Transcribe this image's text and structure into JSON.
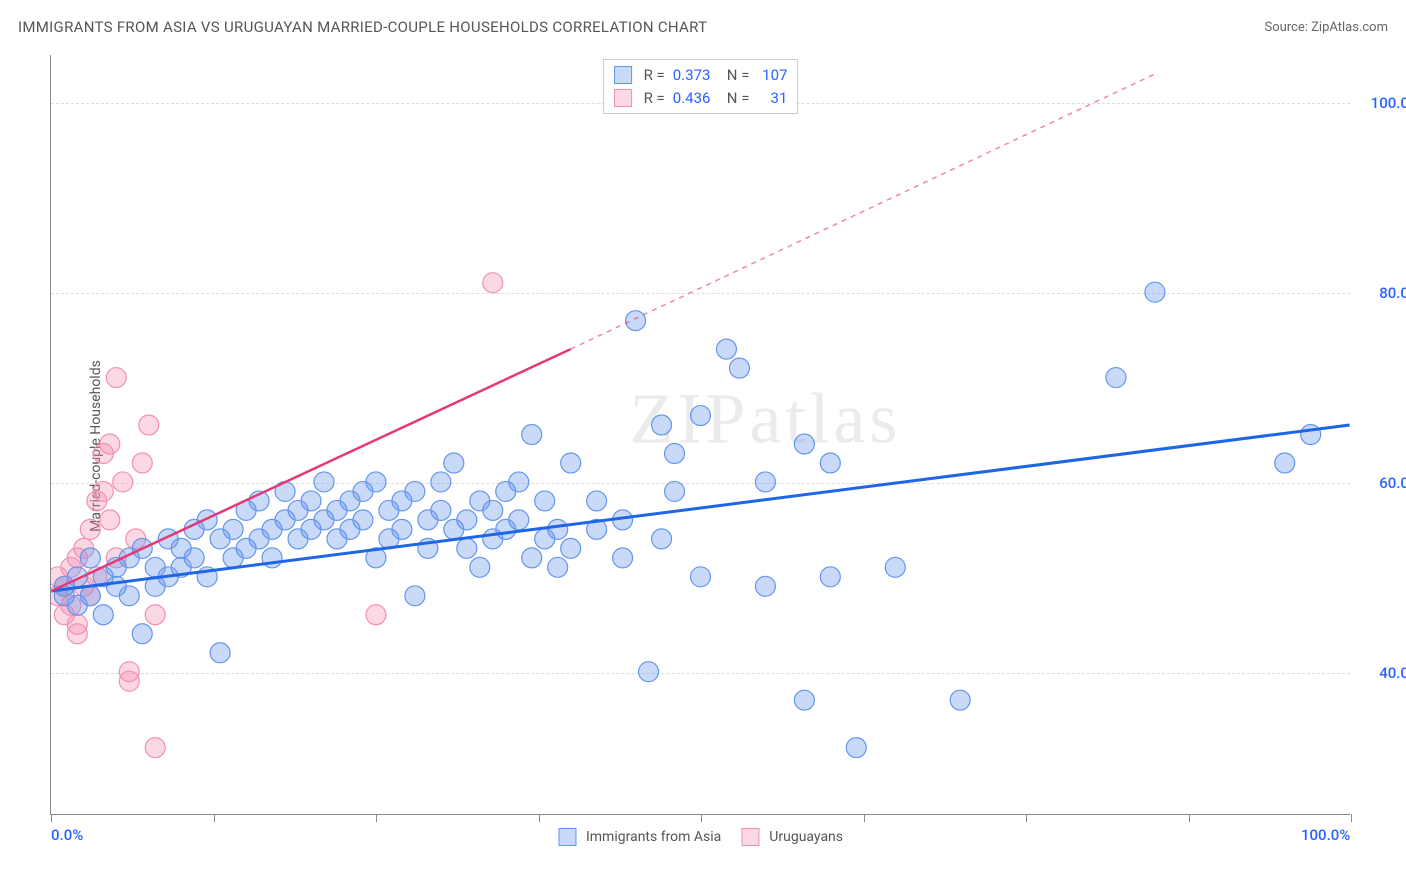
{
  "title": "IMMIGRANTS FROM ASIA VS URUGUAYAN MARRIED-COUPLE HOUSEHOLDS CORRELATION CHART",
  "source": "Source: ZipAtlas.com",
  "watermark": "ZIPatlas",
  "ylabel": "Married-couple Households",
  "chart": {
    "type": "scatter",
    "xlim": [
      0,
      100
    ],
    "ylim": [
      25,
      105
    ],
    "x_ticks": [
      0,
      12.5,
      25,
      37.5,
      50,
      62.5,
      75,
      87.5,
      100
    ],
    "x_tick_labels": {
      "0": "0.0%",
      "100": "100.0%"
    },
    "y_gridlines": [
      40,
      60,
      80,
      100
    ],
    "y_tick_labels": {
      "40": "40.0%",
      "60": "60.0%",
      "80": "80.0%",
      "100": "100.0%"
    },
    "x_label_color": "#2962ff",
    "y_label_color": "#2962ff",
    "background_color": "#ffffff",
    "grid_color": "#dddddd",
    "axis_color": "#888888",
    "series": [
      {
        "name": "Immigrants from Asia",
        "color_fill": "rgba(100,149,237,0.35)",
        "color_stroke": "#6495ed",
        "trend_color": "#1e66e5",
        "trend_width": 3,
        "trend_start": [
          0,
          48.5
        ],
        "trend_end": [
          100,
          66
        ],
        "trend_dash_after": 100,
        "R": "0.373",
        "N": "107",
        "marker_r": 10,
        "points": [
          [
            1,
            49
          ],
          [
            1,
            48
          ],
          [
            2,
            50
          ],
          [
            2,
            47
          ],
          [
            3,
            52
          ],
          [
            3,
            48
          ],
          [
            4,
            50
          ],
          [
            4,
            46
          ],
          [
            5,
            51
          ],
          [
            5,
            49
          ],
          [
            6,
            52
          ],
          [
            6,
            48
          ],
          [
            7,
            44
          ],
          [
            7,
            53
          ],
          [
            8,
            51
          ],
          [
            8,
            49
          ],
          [
            9,
            54
          ],
          [
            9,
            50
          ],
          [
            10,
            53
          ],
          [
            10,
            51
          ],
          [
            11,
            55
          ],
          [
            11,
            52
          ],
          [
            12,
            56
          ],
          [
            12,
            50
          ],
          [
            13,
            54
          ],
          [
            13,
            42
          ],
          [
            14,
            55
          ],
          [
            14,
            52
          ],
          [
            15,
            57
          ],
          [
            15,
            53
          ],
          [
            16,
            54
          ],
          [
            16,
            58
          ],
          [
            17,
            55
          ],
          [
            17,
            52
          ],
          [
            18,
            56
          ],
          [
            18,
            59
          ],
          [
            19,
            57
          ],
          [
            19,
            54
          ],
          [
            20,
            58
          ],
          [
            20,
            55
          ],
          [
            21,
            56
          ],
          [
            21,
            60
          ],
          [
            22,
            57
          ],
          [
            22,
            54
          ],
          [
            23,
            58
          ],
          [
            23,
            55
          ],
          [
            24,
            59
          ],
          [
            24,
            56
          ],
          [
            25,
            60
          ],
          [
            25,
            52
          ],
          [
            26,
            57
          ],
          [
            26,
            54
          ],
          [
            27,
            58
          ],
          [
            27,
            55
          ],
          [
            28,
            59
          ],
          [
            28,
            48
          ],
          [
            29,
            56
          ],
          [
            29,
            53
          ],
          [
            30,
            57
          ],
          [
            30,
            60
          ],
          [
            31,
            62
          ],
          [
            31,
            55
          ],
          [
            32,
            56
          ],
          [
            32,
            53
          ],
          [
            33,
            58
          ],
          [
            33,
            51
          ],
          [
            34,
            54
          ],
          [
            34,
            57
          ],
          [
            35,
            59
          ],
          [
            35,
            55
          ],
          [
            36,
            60
          ],
          [
            36,
            56
          ],
          [
            37,
            65
          ],
          [
            37,
            52
          ],
          [
            38,
            58
          ],
          [
            38,
            54
          ],
          [
            39,
            55
          ],
          [
            39,
            51
          ],
          [
            40,
            62
          ],
          [
            40,
            53
          ],
          [
            42,
            58
          ],
          [
            42,
            55
          ],
          [
            44,
            56
          ],
          [
            44,
            52
          ],
          [
            45,
            77
          ],
          [
            46,
            40
          ],
          [
            47,
            66
          ],
          [
            47,
            54
          ],
          [
            48,
            63
          ],
          [
            48,
            59
          ],
          [
            50,
            50
          ],
          [
            50,
            67
          ],
          [
            52,
            74
          ],
          [
            53,
            72
          ],
          [
            55,
            60
          ],
          [
            55,
            49
          ],
          [
            58,
            64
          ],
          [
            58,
            37
          ],
          [
            60,
            50
          ],
          [
            60,
            62
          ],
          [
            62,
            32
          ],
          [
            65,
            51
          ],
          [
            70,
            37
          ],
          [
            82,
            71
          ],
          [
            85,
            80
          ],
          [
            95,
            62
          ],
          [
            97,
            65
          ]
        ]
      },
      {
        "name": "Uruguayans",
        "color_fill": "rgba(244,143,177,0.35)",
        "color_stroke": "#f48fb1",
        "trend_color": "#e53977",
        "trend_width": 2.5,
        "trend_start": [
          0,
          48.5
        ],
        "trend_end": [
          40,
          74
        ],
        "trend_dashed_end": [
          85,
          103
        ],
        "R": "0.436",
        "N": "31",
        "marker_r": 10,
        "points": [
          [
            0.5,
            48
          ],
          [
            0.5,
            50
          ],
          [
            1,
            46
          ],
          [
            1,
            49
          ],
          [
            1.5,
            47
          ],
          [
            1.5,
            51
          ],
          [
            2,
            45
          ],
          [
            2,
            52
          ],
          [
            2.5,
            49
          ],
          [
            2.5,
            53
          ],
          [
            3,
            55
          ],
          [
            3,
            48
          ],
          [
            3.5,
            58
          ],
          [
            3.5,
            50
          ],
          [
            4,
            63
          ],
          [
            4,
            59
          ],
          [
            4.5,
            64
          ],
          [
            4.5,
            56
          ],
          [
            5,
            71
          ],
          [
            5,
            52
          ],
          [
            5.5,
            60
          ],
          [
            6,
            39
          ],
          [
            6,
            40
          ],
          [
            6.5,
            54
          ],
          [
            7,
            62
          ],
          [
            7.5,
            66
          ],
          [
            8,
            32
          ],
          [
            8,
            46
          ],
          [
            25,
            46
          ],
          [
            34,
            81
          ],
          [
            2,
            44
          ]
        ]
      }
    ],
    "legend_top": {
      "R_label": "R =",
      "N_label": "N ="
    },
    "legend_bottom": [
      {
        "label": "Immigrants from Asia",
        "fill": "rgba(100,149,237,0.35)",
        "stroke": "#6495ed"
      },
      {
        "label": "Uruguayans",
        "fill": "rgba(244,143,177,0.35)",
        "stroke": "#f48fb1"
      }
    ]
  }
}
